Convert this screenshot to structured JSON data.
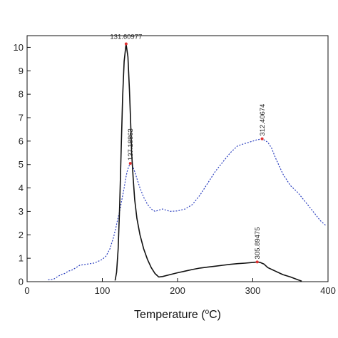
{
  "chart_data": {
    "type": "line",
    "title": "",
    "xlabel": "Temperature (",
    "xlabel_sup": "o",
    "xlabel_tail": "C)",
    "ylabel": "",
    "xlim": [
      0,
      400
    ],
    "ylim": [
      0,
      10.5
    ],
    "xticks": [
      0,
      100,
      200,
      300,
      400
    ],
    "yticks": [
      0,
      1,
      2,
      3,
      4,
      5,
      6,
      7,
      8,
      9,
      10
    ],
    "grid": false,
    "legend": "none",
    "series": [
      {
        "style": "dotted",
        "color": "#2b3fbf",
        "x": [
          28,
          35,
          40,
          45,
          50,
          55,
          60,
          65,
          70,
          80,
          90,
          100,
          105,
          110,
          115,
          118,
          120,
          123,
          126,
          129,
          131,
          133,
          135,
          137.2,
          140,
          143,
          146,
          150,
          155,
          160,
          165,
          170,
          175,
          180,
          185,
          190,
          200,
          210,
          220,
          230,
          240,
          250,
          260,
          270,
          280,
          290,
          300,
          305,
          310,
          312.4,
          315,
          320,
          325,
          330,
          340,
          350,
          360,
          370,
          380,
          390,
          397
        ],
        "y": [
          0.08,
          0.1,
          0.2,
          0.3,
          0.35,
          0.45,
          0.5,
          0.6,
          0.7,
          0.75,
          0.8,
          0.95,
          1.1,
          1.4,
          1.9,
          2.3,
          2.6,
          3.0,
          3.5,
          4.0,
          4.4,
          4.7,
          4.9,
          5.05,
          4.95,
          4.7,
          4.4,
          4.0,
          3.6,
          3.3,
          3.1,
          3.0,
          3.05,
          3.1,
          3.05,
          3.0,
          3.02,
          3.1,
          3.3,
          3.7,
          4.2,
          4.7,
          5.1,
          5.5,
          5.8,
          5.9,
          6.0,
          6.05,
          6.08,
          6.1,
          6.05,
          5.95,
          5.7,
          5.3,
          4.6,
          4.1,
          3.8,
          3.4,
          3.0,
          2.6,
          2.4
        ]
      },
      {
        "style": "solid",
        "color": "#111111",
        "x": [
          117,
          119,
          121,
          123,
          125,
          127,
          129,
          131.6,
          134,
          136,
          137.5,
          139,
          141,
          143,
          146,
          150,
          155,
          160,
          165,
          170,
          175,
          180,
          190,
          200,
          210,
          220,
          230,
          240,
          250,
          260,
          270,
          280,
          290,
          300,
          305.9,
          310,
          315,
          320,
          330,
          340,
          350,
          360,
          365
        ],
        "y": [
          0.05,
          0.4,
          1.4,
          3.2,
          5.6,
          7.9,
          9.4,
          10.15,
          9.6,
          8.2,
          6.9,
          5.5,
          4.4,
          3.5,
          2.7,
          2.0,
          1.4,
          0.95,
          0.6,
          0.35,
          0.2,
          0.22,
          0.3,
          0.38,
          0.45,
          0.52,
          0.58,
          0.62,
          0.66,
          0.7,
          0.74,
          0.77,
          0.79,
          0.82,
          0.84,
          0.82,
          0.75,
          0.6,
          0.45,
          0.3,
          0.2,
          0.08,
          0.02
        ]
      }
    ],
    "annotations": [
      {
        "text": "131.60977",
        "x": 131.6,
        "y": 10.15,
        "rotate": 0
      },
      {
        "text": "137.18863",
        "x": 137.2,
        "y": 5.05,
        "rotate": -90
      },
      {
        "text": "312.40674",
        "x": 312.4,
        "y": 6.1,
        "rotate": -90
      },
      {
        "text": "305.89475",
        "x": 305.9,
        "y": 0.84,
        "rotate": -90
      }
    ]
  }
}
